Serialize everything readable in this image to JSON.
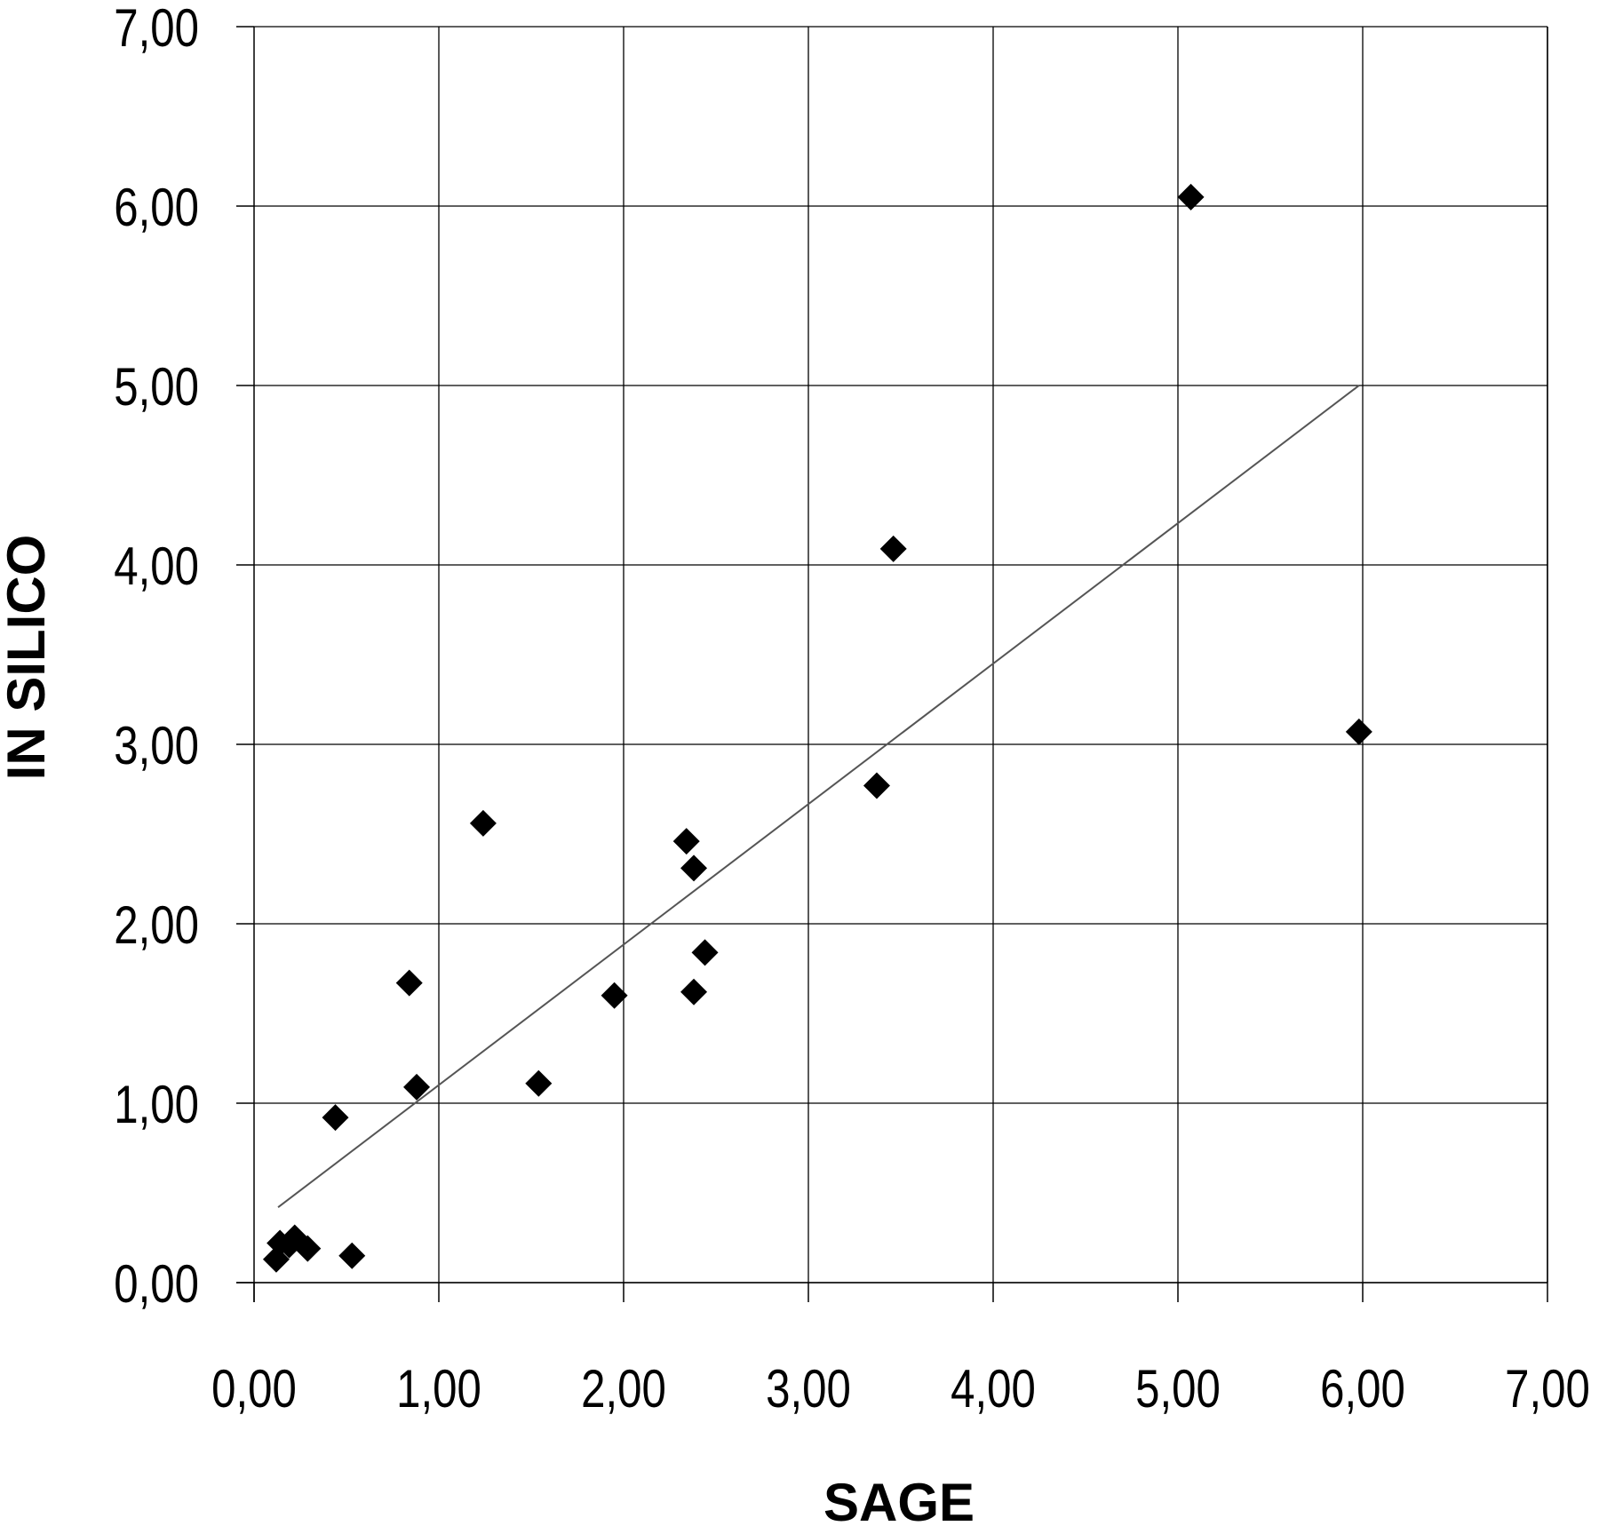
{
  "chart_data": {
    "type": "scatter",
    "title": "",
    "xlabel": "SAGE",
    "ylabel": "IN SILICO",
    "xlim": [
      0,
      7
    ],
    "ylim": [
      0,
      7
    ],
    "x_ticks": [
      "0,00",
      "1,00",
      "2,00",
      "3,00",
      "4,00",
      "5,00",
      "6,00",
      "7,00"
    ],
    "y_ticks": [
      "0,00",
      "1,00",
      "2,00",
      "3,00",
      "4,00",
      "5,00",
      "6,00",
      "7,00"
    ],
    "grid": true,
    "legend": "none",
    "marker": "diamond",
    "marker_color": "#000000",
    "trendline_color": "#555555",
    "points": [
      {
        "x": 0.12,
        "y": 0.13
      },
      {
        "x": 0.14,
        "y": 0.22
      },
      {
        "x": 0.19,
        "y": 0.21
      },
      {
        "x": 0.22,
        "y": 0.25
      },
      {
        "x": 0.29,
        "y": 0.19
      },
      {
        "x": 0.53,
        "y": 0.15
      },
      {
        "x": 0.44,
        "y": 0.92
      },
      {
        "x": 0.84,
        "y": 1.67
      },
      {
        "x": 0.88,
        "y": 1.09
      },
      {
        "x": 1.24,
        "y": 2.56
      },
      {
        "x": 1.54,
        "y": 1.11
      },
      {
        "x": 1.95,
        "y": 1.6
      },
      {
        "x": 2.34,
        "y": 2.46
      },
      {
        "x": 2.38,
        "y": 2.31
      },
      {
        "x": 2.38,
        "y": 1.62
      },
      {
        "x": 2.44,
        "y": 1.84
      },
      {
        "x": 3.37,
        "y": 2.77
      },
      {
        "x": 3.46,
        "y": 4.09
      },
      {
        "x": 5.07,
        "y": 6.05
      },
      {
        "x": 5.98,
        "y": 3.07
      }
    ],
    "trendline": [
      {
        "x": 0.13,
        "y": 0.42
      },
      {
        "x": 5.98,
        "y": 5.0
      }
    ]
  }
}
